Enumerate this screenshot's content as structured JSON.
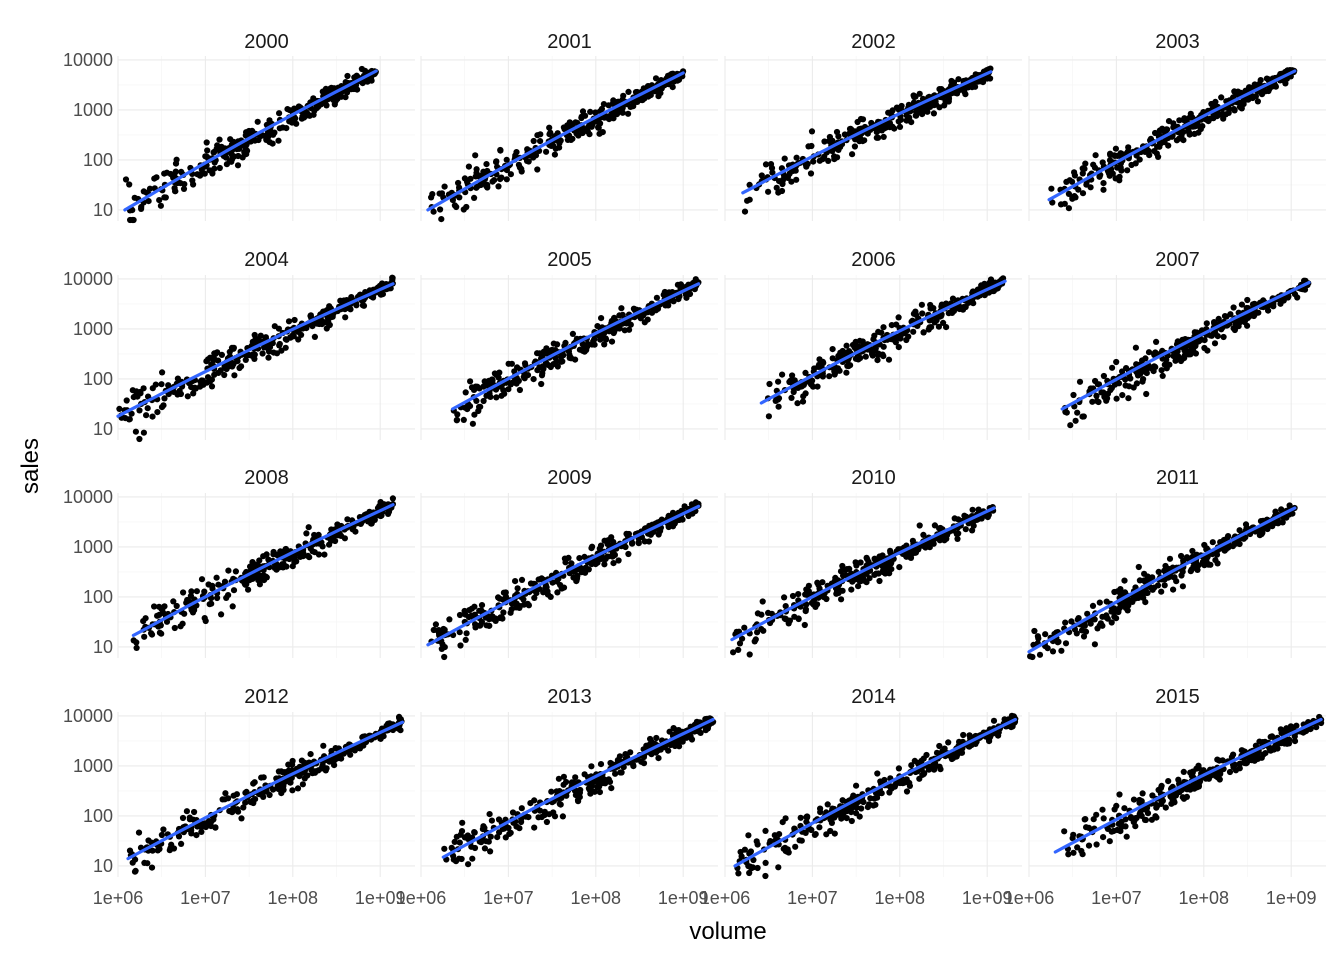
{
  "chart_data": {
    "type": "scatter",
    "layout": "facet_wrap",
    "xlabel": "volume",
    "ylabel": "sales",
    "x_scale": "log10",
    "y_scale": "log10",
    "xlim": [
      1000000,
      2500000000
    ],
    "ylim": [
      6,
      12000
    ],
    "x_ticks": [
      1000000,
      10000000,
      100000000,
      1000000000
    ],
    "x_tick_labels": [
      "1e+06",
      "1e+07",
      "1e+08",
      "1e+09"
    ],
    "y_ticks": [
      10,
      100,
      1000,
      10000
    ],
    "y_tick_labels": [
      "10",
      "100",
      "1000",
      "10000"
    ],
    "grid": true,
    "point_color": "#000000",
    "trend_color": "#3366FF",
    "trend": "smooth",
    "facets": [
      {
        "label": "2000",
        "x_range": [
          1200000,
          900000000
        ],
        "y_range": [
          10,
          6000
        ]
      },
      {
        "label": "2001",
        "x_range": [
          1200000,
          1000000000
        ],
        "y_range": [
          10,
          5500
        ]
      },
      {
        "label": "2002",
        "x_range": [
          1600000,
          1100000000
        ],
        "y_range": [
          22,
          5800
        ]
      },
      {
        "label": "2003",
        "x_range": [
          1700000,
          1100000000
        ],
        "y_range": [
          16,
          6000
        ]
      },
      {
        "label": "2004",
        "x_range": [
          1000000,
          1400000000
        ],
        "y_range": [
          18,
          8000
        ]
      },
      {
        "label": "2005",
        "x_range": [
          2300000,
          1500000000
        ],
        "y_range": [
          25,
          8000
        ]
      },
      {
        "label": "2006",
        "x_range": [
          2600000,
          1600000000
        ],
        "y_range": [
          33,
          9000
        ]
      },
      {
        "label": "2007",
        "x_range": [
          2400000,
          1600000000
        ],
        "y_range": [
          25,
          8500
        ]
      },
      {
        "label": "2008",
        "x_range": [
          1500000,
          1400000000
        ],
        "y_range": [
          17,
          7000
        ]
      },
      {
        "label": "2009",
        "x_range": [
          1200000,
          1500000000
        ],
        "y_range": [
          11,
          6500
        ]
      },
      {
        "label": "2010",
        "x_range": [
          1200000,
          1200000000
        ],
        "y_range": [
          14,
          6000
        ]
      },
      {
        "label": "2011",
        "x_range": [
          1000000,
          1100000000
        ],
        "y_range": [
          8,
          6000
        ]
      },
      {
        "label": "2012",
        "x_range": [
          1300000,
          1800000000
        ],
        "y_range": [
          14,
          7500
        ]
      },
      {
        "label": "2013",
        "x_range": [
          1800000,
          2200000000
        ],
        "y_range": [
          15,
          8500
        ]
      },
      {
        "label": "2014",
        "x_range": [
          1300000,
          2100000000
        ],
        "y_range": [
          10,
          8500
        ]
      },
      {
        "label": "2015",
        "x_range": [
          2000000,
          2200000000
        ],
        "y_range": [
          19,
          8500
        ]
      }
    ]
  }
}
